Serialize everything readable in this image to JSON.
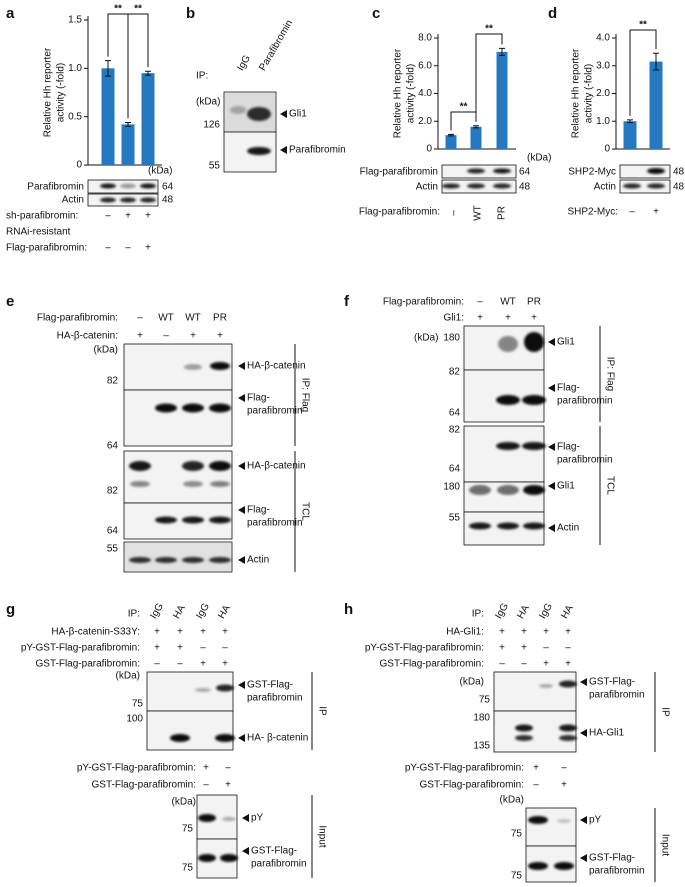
{
  "chart_data": [
    {
      "type": "bar",
      "ylabel": [
        "Relative Hh reporter",
        "activity (-fold)"
      ],
      "ylim": [
        0,
        1.5
      ],
      "yticks": [
        0,
        0.5,
        {
          "value": 1,
          "label": "1.0"
        },
        1.5
      ],
      "values": [
        1.0,
        0.42,
        0.95
      ],
      "errors": [
        0.08,
        0.02,
        0.02
      ],
      "color": "#2479c1",
      "significance": [
        {
          "label": "**",
          "between": [
            0,
            1
          ]
        },
        {
          "label": "**",
          "between": [
            1,
            2
          ]
        }
      ]
    },
    {
      "type": "bar",
      "ylabel": [
        "Relative Hh reporter",
        "activity (-fold)"
      ],
      "ylim": [
        0,
        8
      ],
      "yticks": [
        0,
        {
          "value": 2,
          "label": "2.0"
        },
        {
          "value": 4,
          "label": "4.0"
        },
        {
          "value": 6,
          "label": "6.0"
        },
        {
          "value": 8,
          "label": "8.0"
        }
      ],
      "values": [
        1.0,
        1.6,
        7.0
      ],
      "errors": [
        0.05,
        0.08,
        0.25
      ],
      "color": "#2479c1",
      "significance": [
        {
          "label": "**",
          "between": [
            0,
            1
          ]
        },
        {
          "label": "**",
          "between": [
            1,
            2
          ]
        }
      ]
    },
    {
      "type": "bar",
      "ylabel": [
        "Relative Hh reporter",
        "activity (-fold)"
      ],
      "ylim": [
        0,
        4
      ],
      "yticks": [
        0,
        {
          "value": 1,
          "label": "1.0"
        },
        {
          "value": 2,
          "label": "2.0"
        },
        {
          "value": 3,
          "label": "3.0"
        },
        {
          "value": 4,
          "label": "4.0"
        }
      ],
      "values": [
        1.0,
        3.15
      ],
      "errors": [
        0.05,
        0.3
      ],
      "color": "#2479c1",
      "significance": [
        {
          "label": "**",
          "between": [
            0,
            1
          ]
        }
      ]
    }
  ],
  "panels": {
    "a": {
      "letter": "a",
      "unit": "(kDa)",
      "blots": [
        {
          "label": "Parafibromin",
          "kda": 64
        },
        {
          "label": "Actin",
          "kda": 48
        }
      ],
      "conditions": [
        {
          "name": [
            "sh-parafibromin:"
          ],
          "lanes": [
            "–",
            "+",
            "+"
          ]
        },
        {
          "name": [
            "RNAi-resistant",
            "Flag-parafibromin:"
          ],
          "lanes": [
            "–",
            "–",
            "+"
          ]
        }
      ]
    },
    "b": {
      "letter": "b",
      "ip": "IP:",
      "lanes": [
        "IgG",
        "Parafibromin"
      ],
      "unit": "(kDa)",
      "markers": [
        126,
        55
      ],
      "bands": [
        [
          "Gli1"
        ],
        [
          "Parafibromin"
        ]
      ]
    },
    "c": {
      "letter": "c",
      "unit": "(kDa)",
      "blots": [
        {
          "label": "Flag-parafibromin",
          "kda": 64
        },
        {
          "label": "Actin",
          "kda": 48
        }
      ],
      "conditions": [
        {
          "name": [
            "Flag-parafibromin:"
          ],
          "lanes": [
            "–",
            "WT",
            "PR"
          ]
        }
      ]
    },
    "d": {
      "letter": "d",
      "blots": [
        {
          "label": "SHP2-Myc",
          "kda": 48
        },
        {
          "label": "Actin",
          "kda": 48
        }
      ],
      "conditions": [
        {
          "name": [
            "SHP2-Myc:"
          ],
          "lanes": [
            "–",
            "+"
          ]
        }
      ]
    },
    "e": {
      "letter": "e",
      "conditions": [
        {
          "name": [
            "Flag-parafibromin:"
          ],
          "lanes": [
            "–",
            "WT",
            "WT",
            "PR"
          ]
        },
        {
          "name": [
            "HA-β-catenin:"
          ],
          "lanes": [
            "+",
            "–",
            "+",
            "+"
          ]
        }
      ],
      "unit": "(kDa)",
      "markers": [
        82,
        64,
        82,
        64,
        55
      ],
      "bands": [
        [
          "HA-β-catenin"
        ],
        [
          "Flag-",
          "parafibromin"
        ],
        [
          "HA-β-catenin"
        ],
        [
          "Flag-",
          "parafibromin"
        ],
        [
          "Actin"
        ]
      ],
      "groups": [
        "IP: Flag",
        "TCL"
      ]
    },
    "f": {
      "letter": "f",
      "conditions": [
        {
          "name": [
            "Flag-parafibromin:"
          ],
          "lanes": [
            "–",
            "WT",
            "PR"
          ]
        },
        {
          "name": [
            "Gli1:"
          ],
          "lanes": [
            "+",
            "+",
            "+"
          ]
        }
      ],
      "unit": "(kDa)",
      "markers": [
        180,
        82,
        64,
        82,
        64,
        180,
        55
      ],
      "bands": [
        [
          "Gli1"
        ],
        [
          "Flag-",
          "parafibromin"
        ],
        [
          "Flag-",
          "parafibromin"
        ],
        [
          "Gli1"
        ],
        [
          "Actin"
        ]
      ],
      "groups": [
        "IP: Flag",
        "TCL"
      ]
    },
    "g": {
      "letter": "g",
      "ip": "IP:",
      "ip_lanes": [
        "IgG",
        "HA",
        "IgG",
        "HA"
      ],
      "conditions": [
        {
          "name": [
            "HA-β-catenin-S33Y:"
          ],
          "lanes": [
            "+",
            "+",
            "+",
            "+"
          ]
        },
        {
          "name": [
            "pY-GST-Flag-parafibromin:"
          ],
          "lanes": [
            "+",
            "+",
            "–",
            "–"
          ]
        },
        {
          "name": [
            "GST-Flag-parafibromin:"
          ],
          "lanes": [
            "–",
            "–",
            "+",
            "+"
          ]
        }
      ],
      "unit": "(kDa)",
      "markers": [
        75,
        100
      ],
      "bands": [
        [
          "GST-Flag-",
          "parafibromin"
        ],
        [
          "HA- β-catenin"
        ]
      ],
      "group": "IP",
      "input": {
        "conditions": [
          {
            "name": [
              "pY-GST-Flag-parafibromin:"
            ],
            "lanes": [
              "+",
              "–"
            ]
          },
          {
            "name": [
              "GST-Flag-parafibromin:"
            ],
            "lanes": [
              "–",
              "+"
            ]
          }
        ],
        "unit": "(kDa)",
        "markers": [
          75,
          75
        ],
        "bands": [
          [
            "pY"
          ],
          [
            "GST-Flag-",
            "parafibromin"
          ]
        ],
        "group": "Input"
      }
    },
    "h": {
      "letter": "h",
      "ip": "IP:",
      "ip_lanes": [
        "IgG",
        "HA",
        "IgG",
        "HA"
      ],
      "conditions": [
        {
          "name": [
            "HA-Gli1:"
          ],
          "lanes": [
            "+",
            "+",
            "+",
            "+"
          ]
        },
        {
          "name": [
            "pY-GST-Flag-parafibromin:"
          ],
          "lanes": [
            "+",
            "+",
            "–",
            "–"
          ]
        },
        {
          "name": [
            "GST-Flag-parafibromin:"
          ],
          "lanes": [
            "–",
            "–",
            "+",
            "+"
          ]
        }
      ],
      "unit": "(kDa)",
      "markers": [
        75,
        180,
        135
      ],
      "bands": [
        [
          "GST-Flag-",
          "parafibromin"
        ],
        [
          "HA-Gli1"
        ]
      ],
      "group": "IP",
      "input": {
        "conditions": [
          {
            "name": [
              "pY-GST-Flag-parafibromin:"
            ],
            "lanes": [
              "+",
              "–"
            ]
          },
          {
            "name": [
              "GST-Flag-parafibromin:"
            ],
            "lanes": [
              "–",
              "+"
            ]
          }
        ],
        "unit": "(kDa)",
        "markers": [
          75,
          75
        ],
        "bands": [
          [
            "pY"
          ],
          [
            "GST-Flag-",
            "parafibromin"
          ]
        ],
        "group": "Input"
      }
    }
  }
}
